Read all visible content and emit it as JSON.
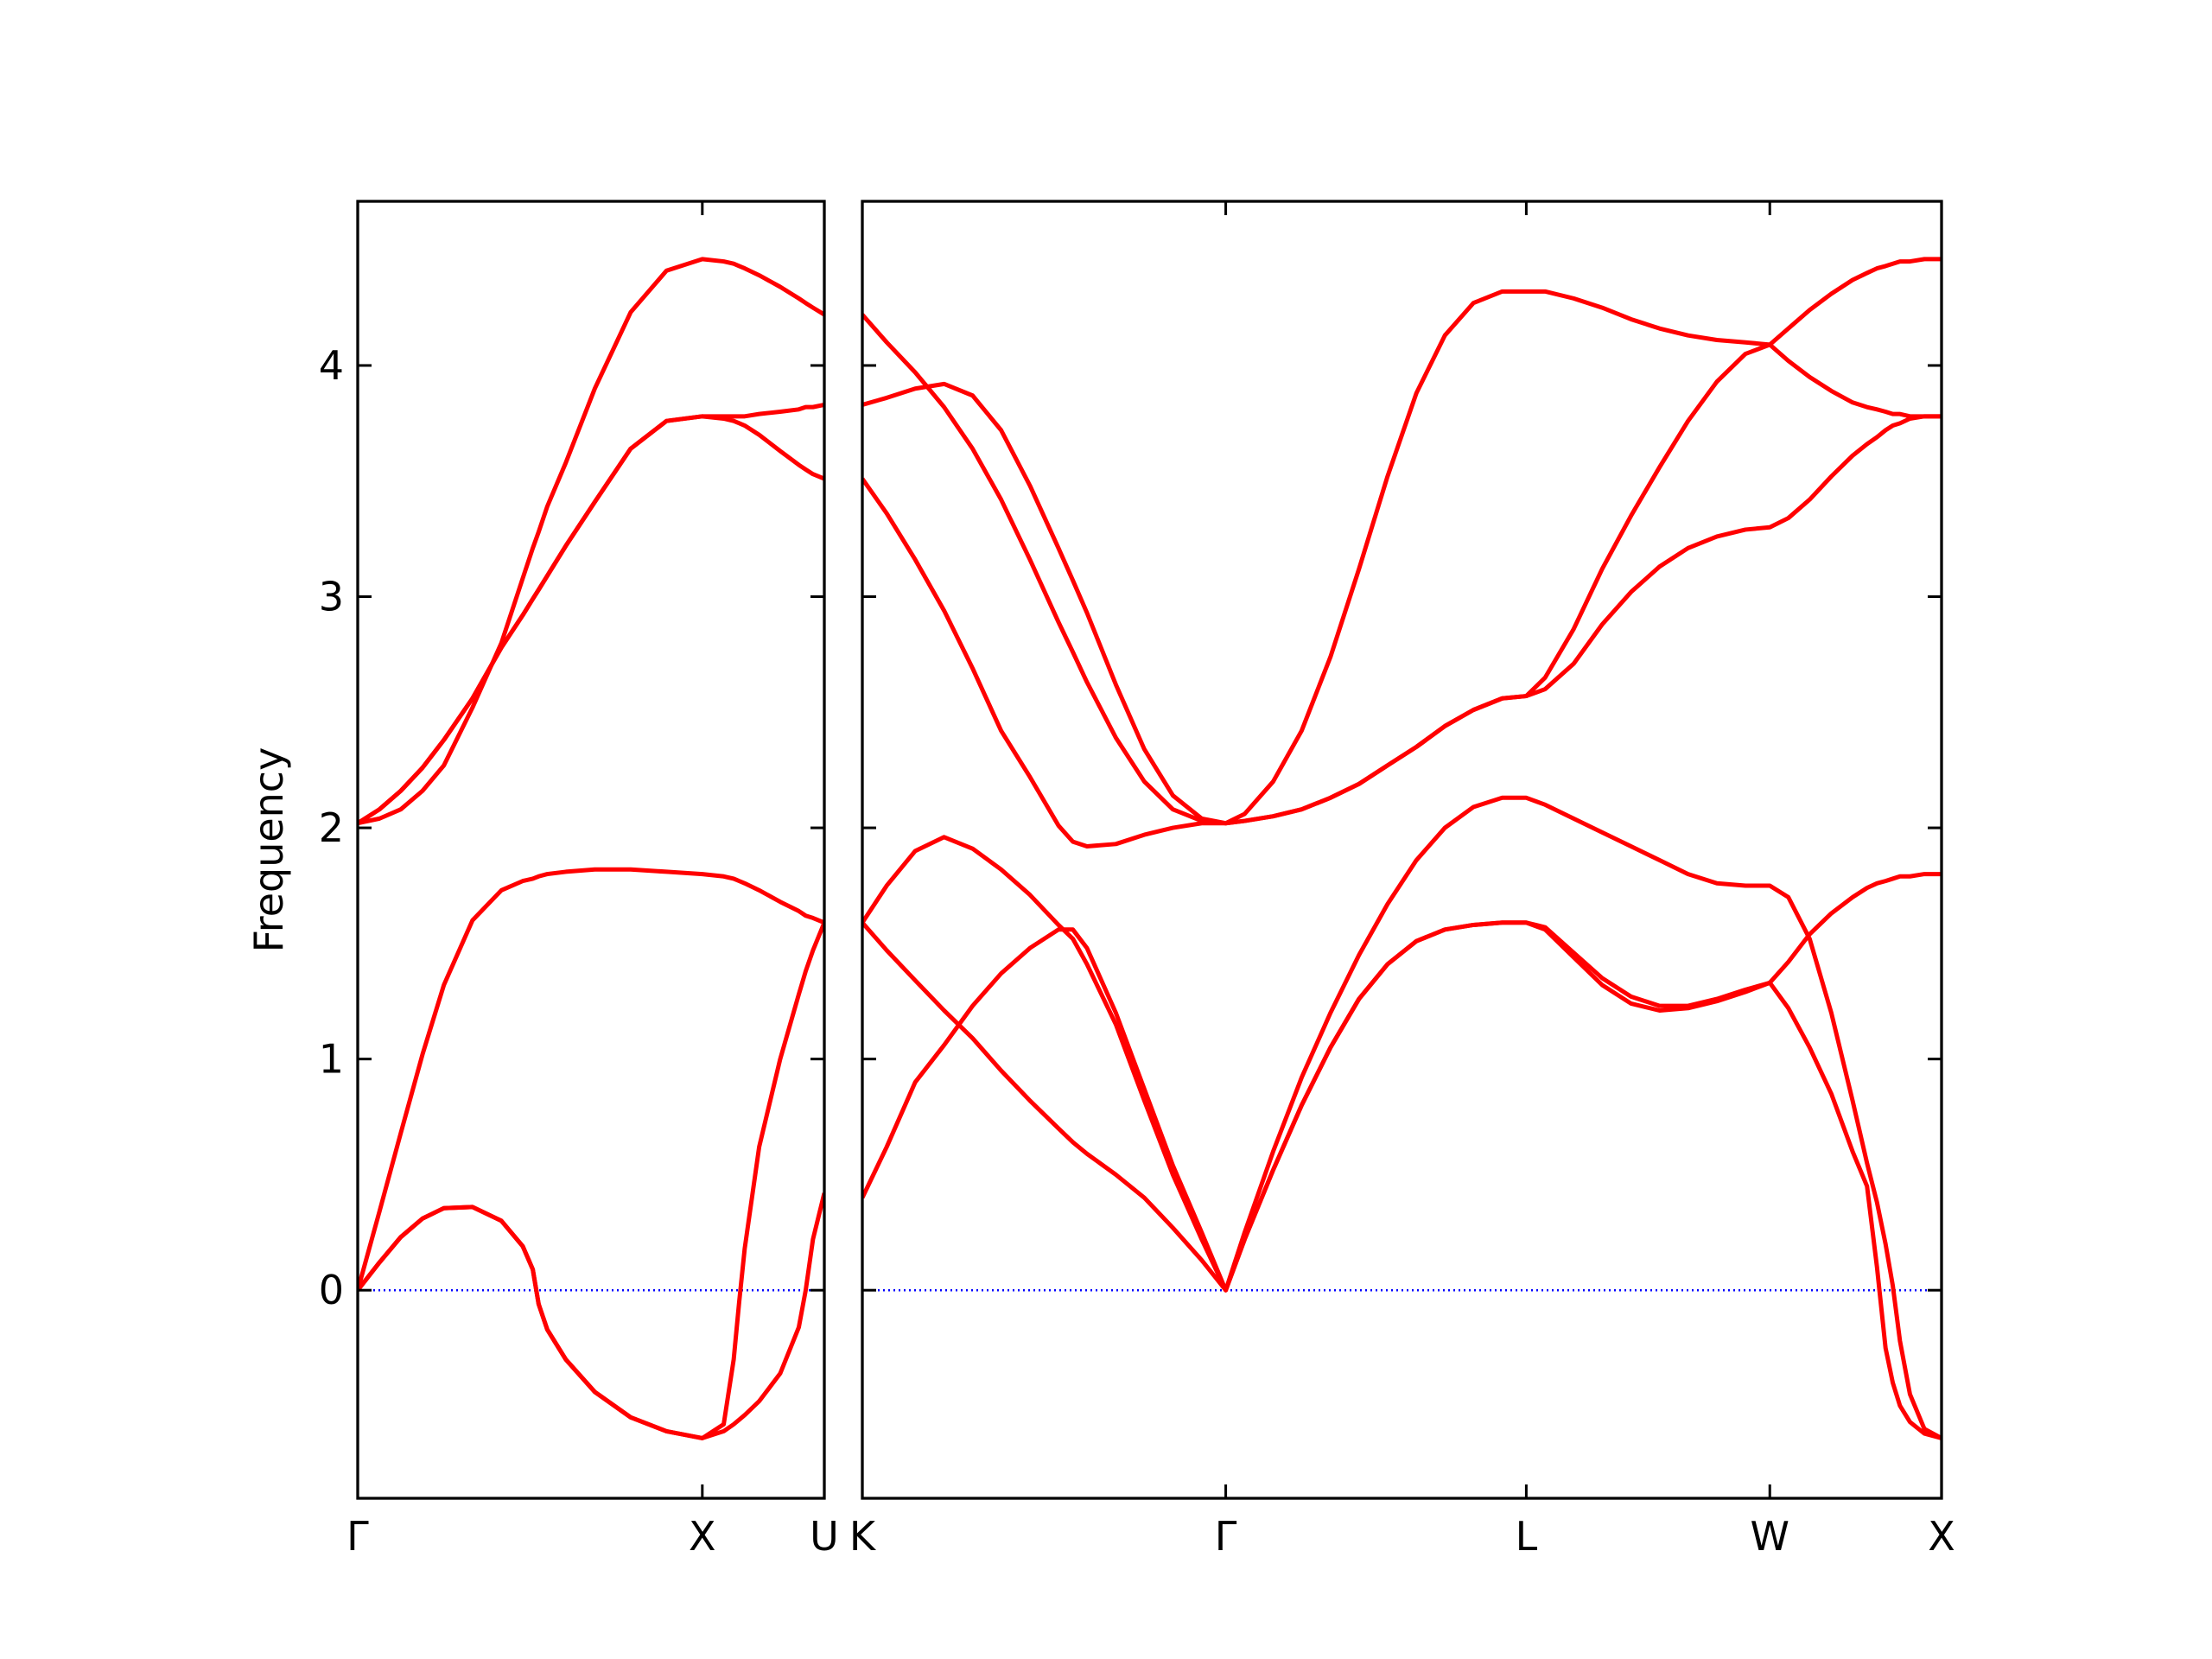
{
  "chart_data": [
    {
      "type": "line",
      "ylabel": "Frequency",
      "ytick_labels": true,
      "xlim": [
        0,
        1.354
      ],
      "ylim": [
        -0.9,
        4.71
      ],
      "xticks": [
        {
          "value": 0,
          "label": "Γ"
        },
        {
          "value": 1,
          "label": "X"
        },
        {
          "value": 1.354,
          "label": "U"
        }
      ],
      "yticks": [
        0,
        1,
        2,
        3,
        4
      ],
      "hline": 0,
      "hline_color": "#0000ff",
      "x": [
        0,
        0.063,
        0.125,
        0.188,
        0.25,
        0.333,
        0.417,
        0.479,
        0.508,
        0.525,
        0.55,
        0.604,
        0.688,
        0.792,
        0.896,
        1,
        1.062,
        1.091,
        1.107,
        1.123,
        1.165,
        1.226,
        1.28,
        1.3,
        1.321,
        1.354
      ],
      "series": [
        {
          "color": "#ff0000",
          "values": [
            2.02,
            2.04,
            2.08,
            2.16,
            2.27,
            2.52,
            2.8,
            3.08,
            3.21,
            3.28,
            3.39,
            3.58,
            3.9,
            4.23,
            4.41,
            4.46,
            4.45,
            4.44,
            4.43,
            4.42,
            4.39,
            4.34,
            4.29,
            4.27,
            4.25,
            4.22
          ]
        },
        {
          "color": "#ff0000",
          "values": [
            2.02,
            2.08,
            2.16,
            2.26,
            2.38,
            2.56,
            2.78,
            2.92,
            2.99,
            3.03,
            3.09,
            3.22,
            3.41,
            3.64,
            3.76,
            3.78,
            3.78,
            3.78,
            3.78,
            3.78,
            3.79,
            3.8,
            3.81,
            3.82,
            3.82,
            3.83
          ]
        },
        {
          "color": "#ff0000",
          "values": [
            2.02,
            2.08,
            2.16,
            2.26,
            2.38,
            2.56,
            2.78,
            2.92,
            2.99,
            3.03,
            3.09,
            3.22,
            3.41,
            3.64,
            3.76,
            3.78,
            3.77,
            3.76,
            3.75,
            3.74,
            3.7,
            3.63,
            3.57,
            3.55,
            3.53,
            3.51
          ]
        },
        {
          "color": "#ff0000",
          "values": [
            0,
            0.34,
            0.68,
            1.02,
            1.32,
            1.6,
            1.73,
            1.77,
            1.78,
            1.79,
            1.8,
            1.81,
            1.82,
            1.82,
            1.81,
            1.8,
            1.79,
            1.78,
            1.77,
            1.76,
            1.73,
            1.68,
            1.64,
            1.62,
            1.61,
            1.59
          ]
        },
        {
          "color": "#ff0000",
          "values": [
            0,
            0.12,
            0.23,
            0.31,
            0.355,
            0.36,
            0.3,
            0.19,
            0.09,
            -0.06,
            -0.17,
            -0.3,
            -0.44,
            -0.55,
            -0.61,
            -0.64,
            -0.58,
            -0.3,
            -0.05,
            0.18,
            0.62,
            1.0,
            1.28,
            1.38,
            1.47,
            1.59
          ]
        },
        {
          "color": "#ff0000",
          "values": [
            0,
            0.12,
            0.23,
            0.31,
            0.355,
            0.36,
            0.3,
            0.19,
            0.09,
            -0.06,
            -0.17,
            -0.3,
            -0.44,
            -0.55,
            -0.61,
            -0.64,
            -0.61,
            -0.58,
            -0.56,
            -0.54,
            -0.48,
            -0.36,
            -0.16,
            0.0,
            0.22,
            0.42
          ]
        }
      ]
    },
    {
      "type": "line",
      "ytick_labels": false,
      "xlim": [
        1.354,
        4.496
      ],
      "ylim": [
        -0.9,
        4.71
      ],
      "xticks": [
        {
          "value": 1.354,
          "label": "K"
        },
        {
          "value": 2.412,
          "label": "Γ"
        },
        {
          "value": 3.287,
          "label": "L"
        },
        {
          "value": 3.996,
          "label": "W"
        },
        {
          "value": 4.496,
          "label": "X"
        }
      ],
      "yticks": [
        0,
        1,
        2,
        3,
        4
      ],
      "hline": 0,
      "hline_color": "#0000ff",
      "x": [
        1.354,
        1.425,
        1.508,
        1.592,
        1.675,
        1.758,
        1.842,
        1.925,
        1.967,
        2.008,
        2.092,
        2.175,
        2.258,
        2.342,
        2.412,
        2.467,
        2.55,
        2.633,
        2.717,
        2.8,
        2.883,
        2.967,
        3.05,
        3.133,
        3.217,
        3.287,
        3.342,
        3.425,
        3.508,
        3.592,
        3.675,
        3.758,
        3.842,
        3.925,
        3.996,
        4.05,
        4.112,
        4.175,
        4.237,
        4.279,
        4.308,
        4.333,
        4.354,
        4.375,
        4.404,
        4.446,
        4.496
      ],
      "series": [
        {
          "color": "#ff0000",
          "values": [
            4.22,
            4.1,
            3.97,
            3.82,
            3.64,
            3.42,
            3.16,
            2.89,
            2.76,
            2.63,
            2.39,
            2.2,
            2.08,
            2.03,
            2.02,
            2.06,
            2.2,
            2.42,
            2.74,
            3.12,
            3.52,
            3.88,
            4.13,
            4.27,
            4.32,
            4.32,
            4.32,
            4.29,
            4.25,
            4.2,
            4.16,
            4.13,
            4.11,
            4.1,
            4.09,
            4.02,
            3.95,
            3.89,
            3.84,
            3.82,
            3.81,
            3.8,
            3.79,
            3.79,
            3.78,
            3.78,
            3.78
          ]
        },
        {
          "color": "#ff0000",
          "values": [
            3.83,
            3.86,
            3.9,
            3.92,
            3.87,
            3.72,
            3.48,
            3.21,
            3.07,
            2.93,
            2.62,
            2.34,
            2.14,
            2.04,
            2.02,
            2.03,
            2.05,
            2.08,
            2.13,
            2.19,
            2.27,
            2.35,
            2.44,
            2.51,
            2.56,
            2.57,
            2.65,
            2.86,
            3.12,
            3.35,
            3.56,
            3.76,
            3.93,
            4.05,
            4.09,
            4.16,
            4.24,
            4.31,
            4.37,
            4.4,
            4.42,
            4.43,
            4.44,
            4.45,
            4.45,
            4.46,
            4.46
          ]
        },
        {
          "color": "#ff0000",
          "values": [
            3.51,
            3.36,
            3.16,
            2.94,
            2.69,
            2.42,
            2.22,
            2.01,
            1.94,
            1.92,
            1.93,
            1.97,
            2.0,
            2.02,
            2.02,
            2.03,
            2.05,
            2.08,
            2.13,
            2.19,
            2.27,
            2.35,
            2.44,
            2.51,
            2.56,
            2.57,
            2.6,
            2.71,
            2.88,
            3.02,
            3.13,
            3.21,
            3.26,
            3.29,
            3.3,
            3.34,
            3.42,
            3.52,
            3.61,
            3.66,
            3.69,
            3.72,
            3.74,
            3.75,
            3.77,
            3.78,
            3.78
          ]
        },
        {
          "color": "#ff0000",
          "values": [
            1.59,
            1.75,
            1.9,
            1.96,
            1.91,
            1.82,
            1.71,
            1.58,
            1.52,
            1.41,
            1.15,
            0.82,
            0.5,
            0.22,
            0,
            0.25,
            0.6,
            0.92,
            1.2,
            1.45,
            1.67,
            1.86,
            2.0,
            2.09,
            2.13,
            2.13,
            2.1,
            2.04,
            1.98,
            1.92,
            1.86,
            1.8,
            1.76,
            1.75,
            1.75,
            1.7,
            1.52,
            1.2,
            0.82,
            0.55,
            0.38,
            0.2,
            0.02,
            -0.22,
            -0.45,
            -0.6,
            -0.64
          ]
        },
        {
          "color": "#ff0000",
          "values": [
            1.59,
            1.47,
            1.34,
            1.21,
            1.09,
            0.95,
            0.82,
            0.7,
            0.64,
            0.59,
            0.5,
            0.4,
            0.27,
            0.13,
            0,
            0.22,
            0.52,
            0.8,
            1.05,
            1.26,
            1.41,
            1.51,
            1.56,
            1.58,
            1.59,
            1.59,
            1.57,
            1.46,
            1.35,
            1.27,
            1.23,
            1.23,
            1.26,
            1.3,
            1.33,
            1.22,
            1.05,
            0.85,
            0.6,
            0.45,
            0.1,
            -0.25,
            -0.4,
            -0.5,
            -0.57,
            -0.62,
            -0.64
          ]
        },
        {
          "color": "#ff0000",
          "values": [
            0.4,
            0.62,
            0.9,
            1.06,
            1.23,
            1.37,
            1.48,
            1.56,
            1.56,
            1.48,
            1.2,
            0.87,
            0.54,
            0.25,
            0,
            0.22,
            0.52,
            0.8,
            1.05,
            1.26,
            1.41,
            1.51,
            1.56,
            1.58,
            1.59,
            1.59,
            1.56,
            1.44,
            1.32,
            1.24,
            1.21,
            1.22,
            1.25,
            1.29,
            1.33,
            1.42,
            1.54,
            1.63,
            1.7,
            1.74,
            1.76,
            1.77,
            1.78,
            1.79,
            1.79,
            1.8,
            1.8
          ]
        }
      ]
    }
  ]
}
